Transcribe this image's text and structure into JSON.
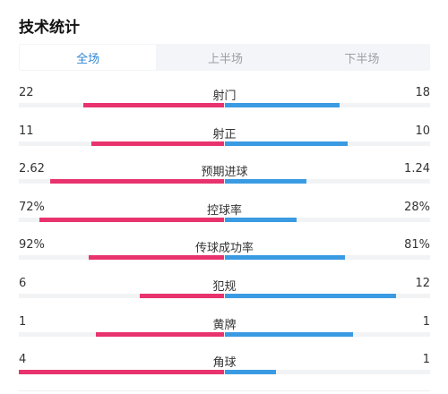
{
  "title": "技术统计",
  "tabs": [
    {
      "label": "全场",
      "active": true
    },
    {
      "label": "上半场",
      "active": false
    },
    {
      "label": "下半场",
      "active": false
    }
  ],
  "colors": {
    "home": "#e8336e",
    "away": "#3a9be3",
    "accent": "#2f86d6"
  },
  "stats": [
    {
      "label": "射门",
      "home": "22",
      "away": "18",
      "home_share": 0.55,
      "away_share": 0.45
    },
    {
      "label": "射正",
      "home": "11",
      "away": "10",
      "home_share": 0.52,
      "away_share": 0.48
    },
    {
      "label": "预期进球",
      "home": "2.62",
      "away": "1.24",
      "home_share": 0.68,
      "away_share": 0.32
    },
    {
      "label": "控球率",
      "home": "72%",
      "away": "28%",
      "home_share": 0.72,
      "away_share": 0.28
    },
    {
      "label": "传球成功率",
      "home": "92%",
      "away": "81%",
      "home_share": 0.53,
      "away_share": 0.47
    },
    {
      "label": "犯规",
      "home": "6",
      "away": "12",
      "home_share": 0.33,
      "away_share": 0.67
    },
    {
      "label": "黄牌",
      "home": "1",
      "away": "1",
      "home_share": 0.5,
      "away_share": 0.5
    },
    {
      "label": "角球",
      "home": "4",
      "away": "1",
      "home_share": 0.8,
      "away_share": 0.2
    }
  ]
}
